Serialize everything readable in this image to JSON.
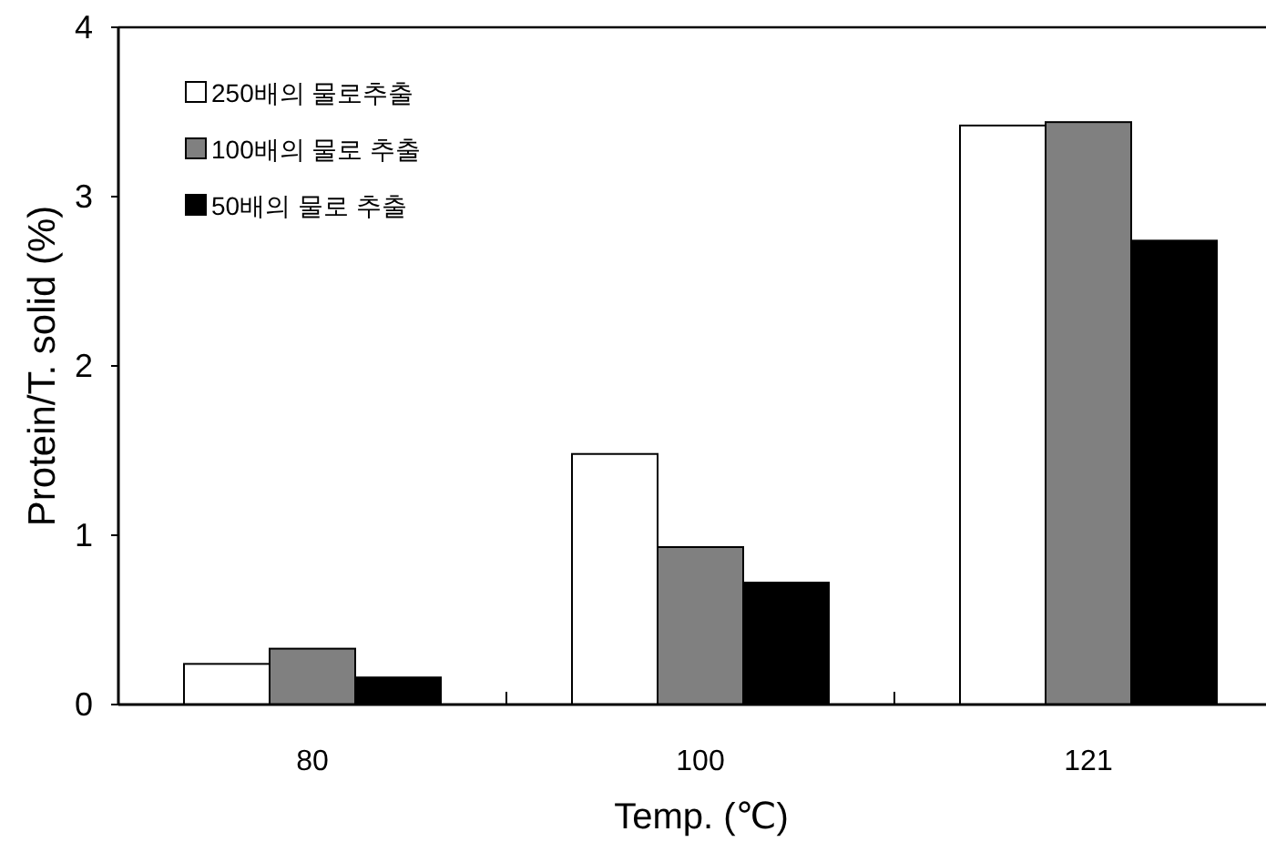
{
  "chart_data": {
    "type": "bar",
    "xlabel": "Temp. (℃)",
    "ylabel": "Protein/T. solid (%)",
    "categories": [
      "80",
      "100",
      "121"
    ],
    "series": [
      {
        "name": "250배의 물로추출",
        "color": "#ffffff",
        "values": [
          0.24,
          1.48,
          3.42
        ]
      },
      {
        "name": "100배의 물로 추출",
        "color": "#808080",
        "values": [
          0.33,
          0.93,
          3.44
        ]
      },
      {
        "name": "50배의 물로 추출",
        "color": "#000000",
        "values": [
          0.16,
          0.72,
          2.74
        ]
      }
    ],
    "ylim": [
      0,
      4
    ],
    "yticks": [
      0,
      1,
      2,
      3,
      4
    ],
    "grid": false,
    "legend": "top left"
  }
}
